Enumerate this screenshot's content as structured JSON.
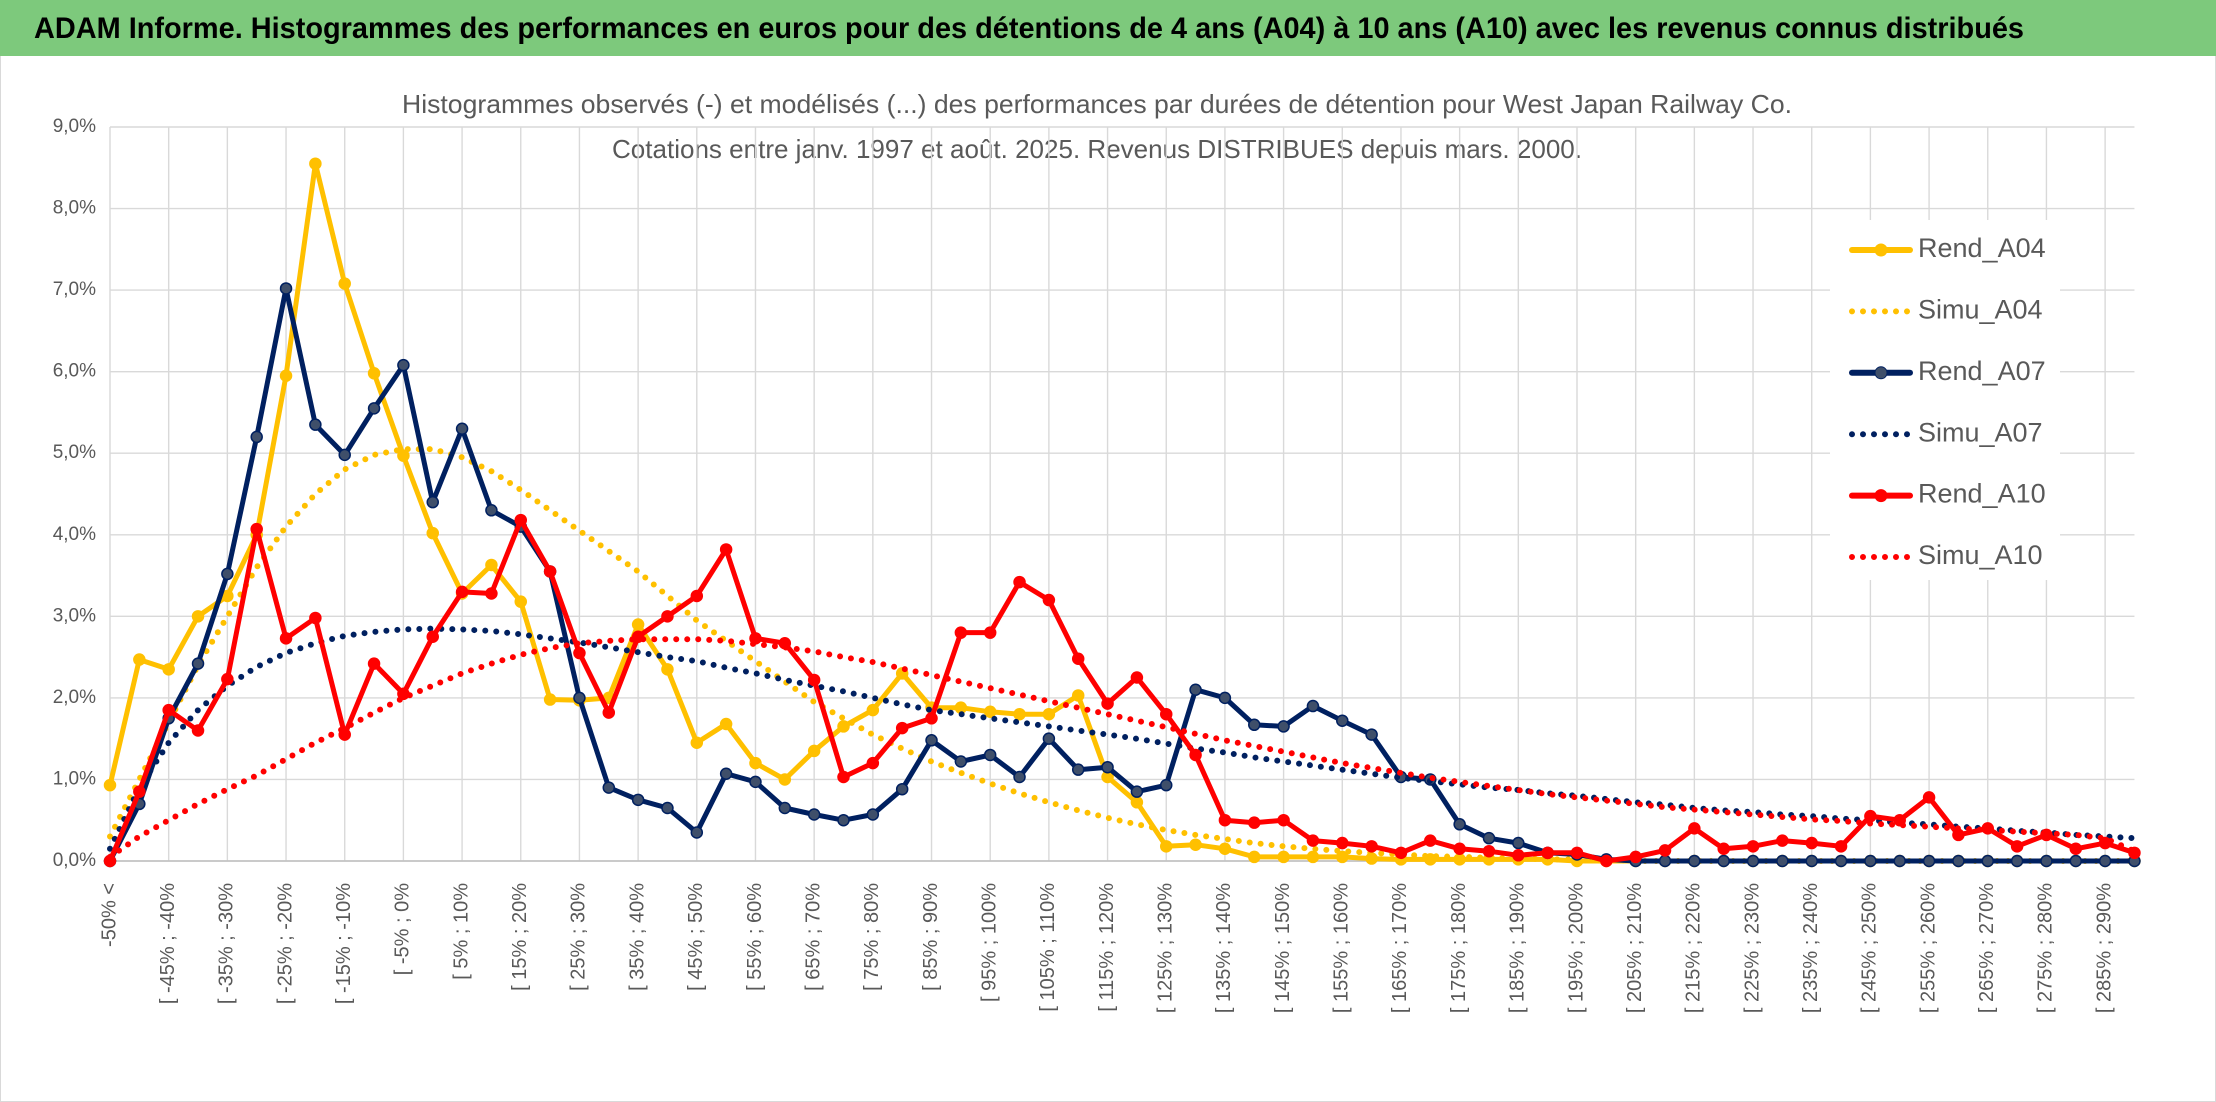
{
  "chart_data": {
    "type": "line",
    "title": "ADAM Informe. Histogrammes des performances en euros pour des détentions de 4 ans (A04) à 10 ans (A10) avec les revenus connus distribués",
    "subtitle": [
      "Histogrammes observés (-) et modélisés (...) des performances par durées de détention pour West Japan Railway Co.",
      "Cotations entre janv. 1997 et août. 2025. Revenus DISTRIBUES depuis mars. 2000."
    ],
    "categories": [
      "-50% <",
      null,
      "[ -45% ; -40%",
      null,
      "[ -35% ; -30%",
      null,
      "[ -25% ; -20%",
      null,
      "[ -15% ; -10%",
      null,
      "[ -5% ; 0%",
      null,
      "[ 5% ; 10%",
      null,
      "[ 15% ; 20%",
      null,
      "[ 25% ; 30%",
      null,
      "[ 35% ; 40%",
      null,
      "[ 45% ; 50%",
      null,
      "[ 55% ; 60%",
      null,
      "[ 65% ; 70%",
      null,
      "[ 75% ; 80%",
      null,
      "[ 85% ; 90%",
      null,
      "[ 95% ; 100%",
      null,
      "[ 105% ; 110%",
      null,
      "[ 115% ; 120%",
      null,
      "[ 125% ; 130%",
      null,
      "[ 135% ; 140%",
      null,
      "[ 145% ; 150%",
      null,
      "[ 155% ; 160%",
      null,
      "[ 165% ; 170%",
      null,
      "[ 175% ; 180%",
      null,
      "[ 185% ; 190%",
      null,
      "[ 195% ; 200%",
      null,
      "[ 205% ; 210%",
      null,
      "[ 215% ; 220%",
      null,
      "[ 225% ; 230%",
      null,
      "[ 235% ; 240%",
      null,
      "[ 245% ; 250%",
      null,
      "[ 255% ; 260%",
      null,
      "[ 265% ; 270%",
      null,
      "[ 275% ; 280%",
      null,
      "[ 285% ; 290%",
      null
    ],
    "ylim": [
      0,
      9
    ],
    "yticks": [
      {
        "value": 0,
        "label": "0,0%"
      },
      {
        "value": 1,
        "label": "1,0%"
      },
      {
        "value": 2,
        "label": "2,0%"
      },
      {
        "value": 3,
        "label": "3,0%"
      },
      {
        "value": 4,
        "label": "4,0%"
      },
      {
        "value": 5,
        "label": "5,0%"
      },
      {
        "value": 6,
        "label": "6,0%"
      },
      {
        "value": 7,
        "label": "7,0%"
      },
      {
        "value": 8,
        "label": "8,0%"
      },
      {
        "value": 9,
        "label": "9,0%"
      }
    ],
    "grid": true,
    "series": [
      {
        "name": "Rend_A04",
        "color": "#FFC000",
        "style": "solid",
        "values": [
          0.93,
          2.47,
          2.35,
          3.0,
          3.25,
          4.0,
          5.95,
          8.55,
          7.08,
          5.98,
          4.97,
          4.02,
          3.28,
          3.63,
          3.18,
          1.98,
          1.97,
          2.0,
          2.9,
          2.35,
          1.45,
          1.68,
          1.2,
          1.0,
          1.35,
          1.65,
          1.85,
          2.3,
          1.88,
          1.88,
          1.83,
          1.8,
          1.8,
          2.03,
          1.03,
          0.72,
          0.18,
          0.2,
          0.15,
          0.05,
          0.05,
          0.05,
          0.05,
          0.03,
          0.02,
          0.02,
          0.02,
          0.02,
          0.02,
          0.02,
          0,
          0,
          0,
          0,
          0,
          0,
          0,
          0,
          0,
          0,
          0,
          0,
          0,
          0,
          0,
          0,
          0,
          0,
          0,
          0
        ]
      },
      {
        "name": "Simu_A04",
        "color": "#FFC000",
        "style": "dotted",
        "values": [
          0.3,
          1.0,
          1.7,
          2.4,
          3.0,
          3.6,
          4.1,
          4.5,
          4.8,
          4.98,
          5.05,
          5.05,
          4.95,
          4.78,
          4.55,
          4.3,
          4.05,
          3.8,
          3.55,
          3.25,
          2.95,
          2.7,
          2.45,
          2.2,
          1.95,
          1.75,
          1.55,
          1.38,
          1.22,
          1.08,
          0.95,
          0.83,
          0.72,
          0.62,
          0.53,
          0.45,
          0.38,
          0.32,
          0.27,
          0.22,
          0.18,
          0.15,
          0.12,
          0.1,
          0.08,
          0.06,
          0.05,
          0.04,
          0.03,
          0.02,
          0.02,
          0.01,
          0,
          0,
          0,
          0,
          0,
          0,
          0,
          0,
          0,
          0,
          0,
          0,
          0,
          0,
          0,
          0,
          0,
          0
        ]
      },
      {
        "name": "Rend_A07",
        "color": "#002060",
        "style": "solid",
        "values": [
          0,
          0.7,
          1.75,
          2.42,
          3.52,
          5.2,
          7.02,
          5.35,
          4.98,
          5.55,
          6.08,
          4.4,
          5.3,
          4.3,
          4.1,
          3.55,
          2.0,
          0.9,
          0.75,
          0.65,
          0.35,
          1.07,
          0.97,
          0.65,
          0.57,
          0.5,
          0.57,
          0.88,
          1.48,
          1.22,
          1.3,
          1.03,
          1.5,
          1.12,
          1.15,
          0.85,
          0.93,
          2.1,
          2.0,
          1.67,
          1.65,
          1.9,
          1.72,
          1.55,
          1.03,
          1.0,
          0.45,
          0.28,
          0.22,
          0.1,
          0.08,
          0.02,
          0,
          0,
          0,
          0,
          0,
          0,
          0,
          0,
          0,
          0,
          0,
          0,
          0,
          0,
          0,
          0,
          0,
          0
        ]
      },
      {
        "name": "Simu_A07",
        "color": "#002060",
        "style": "dotted",
        "values": [
          0.15,
          0.9,
          1.45,
          1.85,
          2.15,
          2.38,
          2.55,
          2.67,
          2.76,
          2.81,
          2.84,
          2.85,
          2.84,
          2.82,
          2.78,
          2.73,
          2.68,
          2.62,
          2.56,
          2.5,
          2.45,
          2.37,
          2.3,
          2.22,
          2.15,
          2.08,
          2.0,
          1.92,
          1.85,
          1.8,
          1.75,
          1.7,
          1.65,
          1.6,
          1.55,
          1.5,
          1.44,
          1.38,
          1.33,
          1.27,
          1.22,
          1.17,
          1.12,
          1.07,
          1.02,
          0.98,
          0.94,
          0.9,
          0.87,
          0.83,
          0.8,
          0.76,
          0.72,
          0.69,
          0.65,
          0.62,
          0.6,
          0.57,
          0.55,
          0.52,
          0.5,
          0.47,
          0.45,
          0.42,
          0.4,
          0.37,
          0.35,
          0.32,
          0.3,
          0.28
        ]
      },
      {
        "name": "Rend_A10",
        "color": "#FF0000",
        "style": "solid",
        "values": [
          0,
          0.85,
          1.85,
          1.6,
          2.23,
          4.07,
          2.73,
          2.98,
          1.55,
          2.42,
          2.05,
          2.75,
          3.3,
          3.28,
          4.18,
          3.55,
          2.55,
          1.82,
          2.75,
          3.0,
          3.25,
          3.82,
          2.73,
          2.67,
          2.22,
          1.03,
          1.2,
          1.63,
          1.75,
          2.8,
          2.8,
          3.42,
          3.2,
          2.48,
          1.93,
          2.25,
          1.8,
          1.3,
          0.5,
          0.47,
          0.5,
          0.25,
          0.22,
          0.18,
          0.1,
          0.25,
          0.15,
          0.12,
          0.07,
          0.1,
          0.1,
          0.0,
          0.05,
          0.13,
          0.4,
          0.15,
          0.18,
          0.25,
          0.22,
          0.18,
          0.55,
          0.5,
          0.78,
          0.32,
          0.4,
          0.18,
          0.32,
          0.15,
          0.22,
          0.1
        ]
      },
      {
        "name": "Simu_A10",
        "color": "#FF0000",
        "style": "dotted",
        "values": [
          0.05,
          0.3,
          0.5,
          0.7,
          0.88,
          1.05,
          1.25,
          1.45,
          1.63,
          1.82,
          2.0,
          2.15,
          2.3,
          2.42,
          2.53,
          2.61,
          2.67,
          2.7,
          2.72,
          2.72,
          2.72,
          2.7,
          2.66,
          2.62,
          2.57,
          2.5,
          2.44,
          2.36,
          2.28,
          2.2,
          2.12,
          2.04,
          1.96,
          1.88,
          1.8,
          1.72,
          1.64,
          1.56,
          1.48,
          1.41,
          1.34,
          1.27,
          1.2,
          1.14,
          1.08,
          1.02,
          0.97,
          0.92,
          0.87,
          0.82,
          0.78,
          0.74,
          0.7,
          0.66,
          0.63,
          0.6,
          0.57,
          0.54,
          0.51,
          0.49,
          0.46,
          0.44,
          0.42,
          0.4,
          0.38,
          0.36,
          0.34,
          0.32,
          0.28,
          0.12
        ]
      }
    ]
  }
}
